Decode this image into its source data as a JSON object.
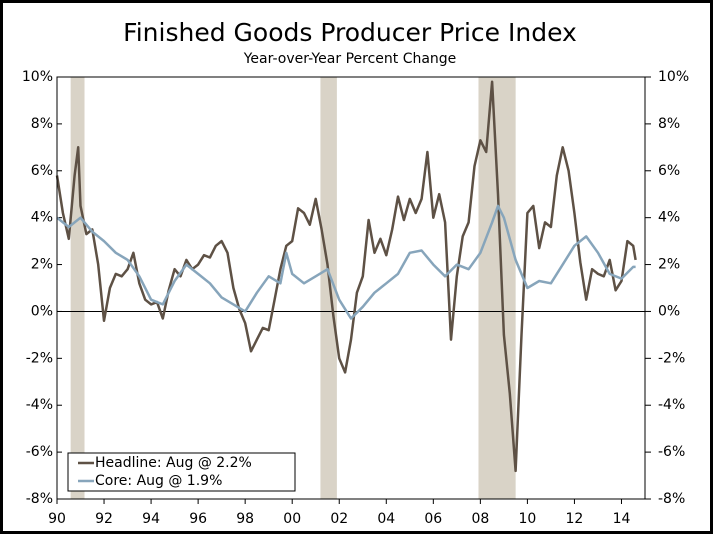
{
  "chart_data": {
    "type": "line",
    "title": "Finished Goods Producer Price Index",
    "subtitle": "Year-over-Year Percent Change",
    "xlim": [
      1990,
      2015
    ],
    "xticks": [
      {
        "value": 1990,
        "label": "90"
      },
      {
        "value": 1992,
        "label": "92"
      },
      {
        "value": 1994,
        "label": "94"
      },
      {
        "value": 1996,
        "label": "96"
      },
      {
        "value": 1998,
        "label": "98"
      },
      {
        "value": 2000,
        "label": "00"
      },
      {
        "value": 2002,
        "label": "02"
      },
      {
        "value": 2004,
        "label": "04"
      },
      {
        "value": 2006,
        "label": "06"
      },
      {
        "value": 2008,
        "label": "08"
      },
      {
        "value": 2010,
        "label": "10"
      },
      {
        "value": 2012,
        "label": "12"
      },
      {
        "value": 2014,
        "label": "14"
      }
    ],
    "ylim": [
      -8,
      10
    ],
    "yticks": [
      {
        "value": -8,
        "label": "-8%"
      },
      {
        "value": -6,
        "label": "-6%"
      },
      {
        "value": -4,
        "label": "-4%"
      },
      {
        "value": -2,
        "label": "-2%"
      },
      {
        "value": 0,
        "label": "0%"
      },
      {
        "value": 2,
        "label": "2%"
      },
      {
        "value": 4,
        "label": "4%"
      },
      {
        "value": 6,
        "label": "6%"
      },
      {
        "value": 8,
        "label": "8%"
      },
      {
        "value": 10,
        "label": "10%"
      }
    ],
    "y2lim": [
      -8,
      10
    ],
    "y2ticks": [
      {
        "value": -8,
        "label": "-8%"
      },
      {
        "value": -6,
        "label": "-6%"
      },
      {
        "value": -4,
        "label": "-4%"
      },
      {
        "value": -2,
        "label": "-2%"
      },
      {
        "value": 0,
        "label": "0%"
      },
      {
        "value": 2,
        "label": "2%"
      },
      {
        "value": 4,
        "label": "4%"
      },
      {
        "value": 6,
        "label": "6%"
      },
      {
        "value": 8,
        "label": "8%"
      },
      {
        "value": 10,
        "label": "10%"
      }
    ],
    "shaded_periods": [
      [
        1990.58,
        1991.17
      ],
      [
        2001.2,
        2001.9
      ],
      [
        2007.92,
        2009.5
      ]
    ],
    "shade_color": "#d9d3c7",
    "legend": "lower left",
    "series": [
      {
        "name": "Headline: Aug @ 2.2%",
        "color": "#5e5145",
        "x": [
          1990,
          1990.25,
          1990.5,
          1990.75,
          1990.9,
          1991,
          1991.25,
          1991.5,
          1991.75,
          1992,
          1992.25,
          1992.5,
          1992.75,
          1993,
          1993.25,
          1993.5,
          1993.75,
          1994,
          1994.25,
          1994.5,
          1994.75,
          1995,
          1995.25,
          1995.5,
          1995.75,
          1996,
          1996.25,
          1996.5,
          1996.75,
          1997,
          1997.25,
          1997.5,
          1997.75,
          1998,
          1998.25,
          1998.5,
          1998.75,
          1999,
          1999.25,
          1999.5,
          1999.75,
          2000,
          2000.25,
          2000.5,
          2000.75,
          2001,
          2001.25,
          2001.5,
          2001.75,
          2002,
          2002.25,
          2002.5,
          2002.75,
          2003,
          2003.25,
          2003.5,
          2003.75,
          2004,
          2004.25,
          2004.5,
          2004.75,
          2005,
          2005.25,
          2005.5,
          2005.75,
          2006,
          2006.25,
          2006.5,
          2006.75,
          2007,
          2007.25,
          2007.5,
          2007.75,
          2008,
          2008.25,
          2008.5,
          2008.75,
          2009,
          2009.25,
          2009.5,
          2009.75,
          2010,
          2010.25,
          2010.5,
          2010.75,
          2011,
          2011.25,
          2011.5,
          2011.75,
          2012,
          2012.25,
          2012.5,
          2012.75,
          2013,
          2013.25,
          2013.5,
          2013.75,
          2014,
          2014.25,
          2014.5,
          2014.6
        ],
        "values": [
          5.8,
          4.2,
          3.1,
          5.8,
          7.0,
          4.5,
          3.3,
          3.5,
          2.0,
          -0.4,
          1.0,
          1.6,
          1.5,
          1.8,
          2.5,
          1.2,
          0.5,
          0.3,
          0.4,
          -0.3,
          0.9,
          1.8,
          1.5,
          2.2,
          1.8,
          2.0,
          2.4,
          2.3,
          2.8,
          3.0,
          2.5,
          1.0,
          0.1,
          -0.5,
          -1.7,
          -1.2,
          -0.7,
          -0.8,
          0.5,
          1.8,
          2.8,
          3.0,
          4.4,
          4.2,
          3.7,
          4.8,
          3.5,
          2.0,
          -0.2,
          -2.0,
          -2.6,
          -1.2,
          0.8,
          1.5,
          3.9,
          2.5,
          3.1,
          2.4,
          3.5,
          4.9,
          3.9,
          4.8,
          4.2,
          4.8,
          6.8,
          4.0,
          5.0,
          3.8,
          -1.2,
          1.5,
          3.2,
          3.8,
          6.2,
          7.3,
          6.8,
          9.8,
          5.0,
          -1.0,
          -3.5,
          -6.8,
          -1.0,
          4.2,
          4.5,
          2.7,
          3.8,
          3.6,
          5.8,
          7.0,
          6.0,
          4.2,
          2.1,
          0.5,
          1.8,
          1.6,
          1.5,
          2.2,
          0.9,
          1.3,
          3.0,
          2.8,
          2.2
        ]
      },
      {
        "name": "Core: Aug @ 1.9%",
        "color": "#87a5bb",
        "x": [
          1990,
          1990.5,
          1991,
          1991.5,
          1992,
          1992.5,
          1993,
          1993.5,
          1994,
          1994.5,
          1995,
          1995.5,
          1996,
          1996.5,
          1997,
          1997.5,
          1998,
          1998.5,
          1999,
          1999.5,
          1999.75,
          2000,
          2000.5,
          2001,
          2001.5,
          2002,
          2002.5,
          2003,
          2003.5,
          2004,
          2004.5,
          2005,
          2005.5,
          2006,
          2006.5,
          2007,
          2007.5,
          2008,
          2008.5,
          2008.75,
          2009,
          2009.5,
          2010,
          2010.5,
          2011,
          2011.5,
          2012,
          2012.5,
          2013,
          2013.5,
          2014,
          2014.5,
          2014.6
        ],
        "values": [
          4.0,
          3.6,
          4.0,
          3.4,
          3.0,
          2.5,
          2.2,
          1.5,
          0.5,
          0.3,
          1.3,
          2.0,
          1.6,
          1.2,
          0.6,
          0.3,
          0.0,
          0.8,
          1.5,
          1.2,
          2.5,
          1.6,
          1.2,
          1.5,
          1.8,
          0.5,
          -0.3,
          0.2,
          0.8,
          1.2,
          1.6,
          2.5,
          2.6,
          2.0,
          1.5,
          2.0,
          1.8,
          2.5,
          3.8,
          4.5,
          4.0,
          2.2,
          1.0,
          1.3,
          1.2,
          2.0,
          2.8,
          3.2,
          2.5,
          1.6,
          1.4,
          1.9,
          1.9
        ]
      }
    ]
  }
}
